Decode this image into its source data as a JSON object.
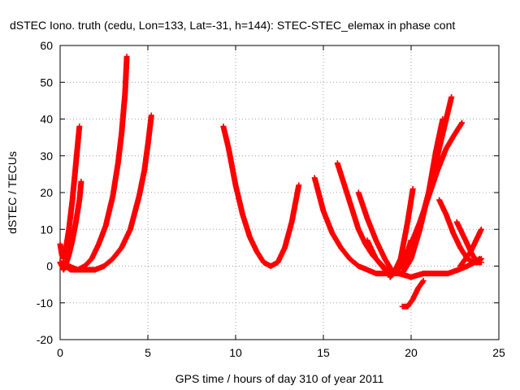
{
  "chart_data": {
    "type": "scatter",
    "title": "dSTEC Iono. truth (cedu, Lon=133, Lat=-31, h=144): STEC-STEC_elemax in phase cont",
    "xlabel": "GPS time / hours of day 310 of year 2011",
    "ylabel": "dSTEC  / TECUs",
    "xlim": [
      0,
      25
    ],
    "ylim": [
      -20,
      60
    ],
    "xticks": [
      0,
      5,
      10,
      15,
      20,
      25
    ],
    "yticks": [
      -20,
      -10,
      0,
      10,
      20,
      30,
      40,
      50,
      60
    ],
    "grid": true,
    "marker": "+",
    "colors": {
      "series": "#ff0000",
      "grid": "#a0a0a0",
      "axes": "#000000"
    },
    "series": [
      {
        "x": [
          0.0,
          0.1,
          0.2,
          0.3,
          0.4,
          0.5,
          0.6,
          0.7,
          0.8,
          0.9,
          1.0,
          1.1
        ],
        "y": [
          6,
          3,
          2,
          4,
          7,
          10,
          14,
          18,
          23,
          28,
          33,
          38
        ]
      },
      {
        "x": [
          0.0,
          0.1,
          0.2,
          0.3,
          0.5,
          0.7,
          0.9,
          1.1,
          1.2
        ],
        "y": [
          1,
          0,
          -1,
          0,
          3,
          7,
          12,
          18,
          23
        ]
      },
      {
        "x": [
          0.0,
          0.3,
          0.6,
          1.0,
          1.4,
          1.8,
          2.2,
          2.6,
          3.0,
          3.3,
          3.5,
          3.7,
          3.8
        ],
        "y": [
          1,
          0,
          -1,
          -1,
          0,
          2,
          6,
          11,
          19,
          28,
          36,
          47,
          57
        ]
      },
      {
        "x": [
          0.0,
          0.5,
          1.0,
          1.5,
          2.0,
          2.5,
          3.0,
          3.5,
          4.0,
          4.5,
          4.8,
          5.0,
          5.2
        ],
        "y": [
          1,
          0,
          -1,
          -1,
          -1,
          0,
          2,
          5,
          10,
          19,
          26,
          33,
          41
        ]
      },
      {
        "x": [
          9.3,
          9.6,
          10.0,
          10.4,
          10.8,
          11.2,
          11.6,
          12.0,
          12.4,
          12.8,
          13.2,
          13.6
        ],
        "y": [
          38,
          32,
          22,
          14,
          8,
          4,
          1,
          0,
          1,
          5,
          12,
          22
        ]
      },
      {
        "x": [
          14.5,
          15.0,
          15.5,
          16.0,
          16.5,
          17.0,
          17.5,
          18.0,
          18.5,
          19.0,
          19.4,
          19.8,
          20.0
        ],
        "y": [
          24,
          15,
          9,
          5,
          2,
          0,
          -1,
          -2,
          -2,
          -2,
          0,
          4,
          7
        ]
      },
      {
        "x": [
          15.8,
          16.2,
          16.6,
          17.0,
          17.4,
          17.8,
          18.2,
          18.6,
          19.0,
          19.4,
          19.8,
          20.1
        ],
        "y": [
          28,
          22,
          16,
          10,
          6,
          3,
          1,
          -1,
          -2,
          2,
          12,
          21
        ]
      },
      {
        "x": [
          17.0,
          17.5,
          18.0,
          18.5,
          19.0,
          19.5,
          20.0,
          20.5,
          21.0,
          21.4,
          21.8
        ],
        "y": [
          20,
          13,
          7,
          2,
          -2,
          -2,
          2,
          10,
          20,
          31,
          40
        ]
      },
      {
        "x": [
          17.5,
          18.0,
          18.5,
          19.0,
          19.5,
          20.0,
          20.5,
          21.0,
          21.5,
          22.0,
          22.3
        ],
        "y": [
          7,
          2,
          -1,
          -2,
          0,
          4,
          11,
          20,
          30,
          40,
          46
        ]
      },
      {
        "x": [
          18.8,
          19.2,
          19.6,
          20.0,
          20.5,
          21.0,
          21.5,
          22.0,
          22.5,
          22.9
        ],
        "y": [
          -3,
          -1,
          2,
          6,
          12,
          19,
          26,
          32,
          36,
          39
        ]
      },
      {
        "x": [
          19.5,
          19.8,
          20.1,
          20.4,
          20.7
        ],
        "y": [
          -11,
          -11,
          -9,
          -6,
          -4
        ]
      },
      {
        "x": [
          19.3,
          20.0,
          20.7,
          21.4,
          22.1,
          22.7,
          23.2,
          23.6,
          23.9
        ],
        "y": [
          -2,
          -3,
          -2,
          -2,
          -2,
          -1,
          0,
          1,
          2
        ]
      },
      {
        "x": [
          21.6,
          22.0,
          22.4,
          22.8,
          23.2,
          23.6,
          24.0
        ],
        "y": [
          18,
          14,
          9,
          5,
          2,
          1,
          1
        ]
      },
      {
        "x": [
          22.6,
          22.9,
          23.2,
          23.5,
          23.8,
          24.0
        ],
        "y": [
          12,
          9,
          6,
          3,
          1,
          2
        ]
      },
      {
        "x": [
          22.8,
          23.1,
          23.4,
          23.7,
          24.0
        ],
        "y": [
          0,
          2,
          4,
          7,
          10
        ]
      }
    ]
  }
}
